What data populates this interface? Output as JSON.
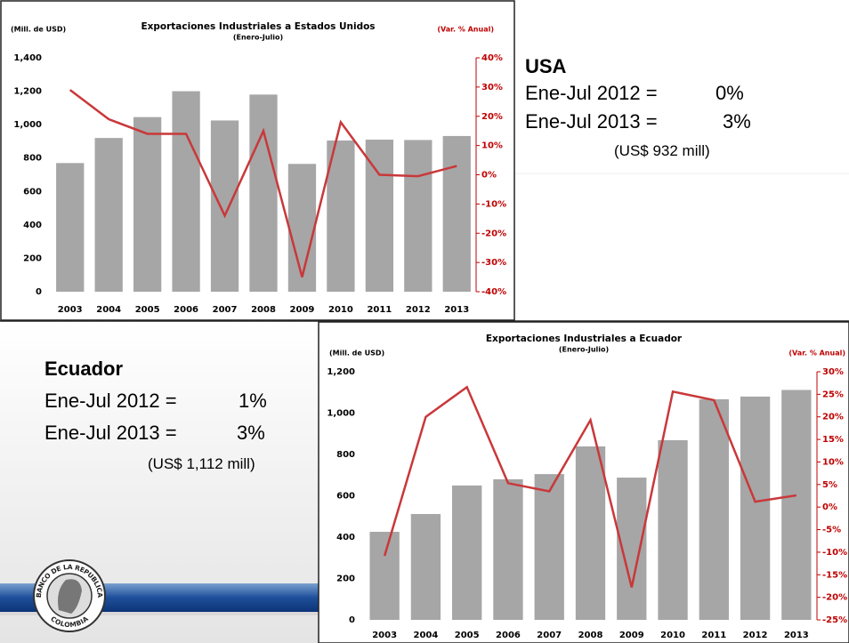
{
  "chart_data": [
    {
      "type": "bar",
      "title": "Exportaciones Industriales a Estados Unidos",
      "subtitle": "(Enero-Julio)",
      "y_label": "(Mill. de USD)",
      "y2_label": "(Var. % Anual)",
      "categories": [
        "2003",
        "2004",
        "2005",
        "2006",
        "2007",
        "2008",
        "2009",
        "2010",
        "2011",
        "2012",
        "2013"
      ],
      "series": [
        {
          "type": "bar",
          "color": "#a6a6a6",
          "values": [
            770,
            920,
            1045,
            1200,
            1025,
            1180,
            765,
            905,
            910,
            908,
            932
          ]
        },
        {
          "type": "line",
          "axis": "y2",
          "color": "#c9383a",
          "values": [
            29,
            19,
            14,
            14,
            -14,
            15,
            -35,
            18,
            0,
            -0.5,
            3
          ]
        }
      ],
      "ylim": [
        0,
        1400
      ],
      "yticks": [
        0,
        200,
        400,
        600,
        800,
        {
          "value": 1000,
          "label": "1,000"
        },
        {
          "value": 1200,
          "label": "1,200"
        },
        {
          "value": 1400,
          "label": "1,400"
        }
      ],
      "y2lim": [
        -40,
        40
      ],
      "y2ticks": [
        {
          "value": -40,
          "label": "-40%"
        },
        {
          "value": -30,
          "label": "-30%"
        },
        {
          "value": -20,
          "label": "-20%"
        },
        {
          "value": -10,
          "label": "-10%"
        },
        {
          "value": 0,
          "label": "0%"
        },
        {
          "value": 10,
          "label": "10%"
        },
        {
          "value": 20,
          "label": "20%"
        },
        {
          "value": 30,
          "label": "30%"
        },
        {
          "value": 40,
          "label": "40%"
        }
      ]
    },
    {
      "type": "bar",
      "title": "Exportaciones Industriales a Ecuador",
      "subtitle": "(Enero-Julio)",
      "y_label": "(Mill. de USD)",
      "y2_label": "(Var. % Anual)",
      "categories": [
        "2003",
        "2004",
        "2005",
        "2006",
        "2007",
        "2008",
        "2009",
        "2010",
        "2011",
        "2012",
        "2013"
      ],
      "series": [
        {
          "type": "bar",
          "color": "#a6a6a6",
          "values": [
            426,
            512,
            650,
            680,
            705,
            839,
            688,
            869,
            1067,
            1080,
            1112
          ]
        },
        {
          "type": "line",
          "axis": "y2",
          "color": "#c9383a",
          "values": [
            -10.8,
            20,
            26.6,
            5.3,
            3.5,
            19.3,
            -17.8,
            25.6,
            23.7,
            1.2,
            2.6
          ]
        }
      ],
      "ylim": [
        0,
        1200
      ],
      "yticks": [
        0,
        200,
        400,
        600,
        800,
        {
          "value": 1000,
          "label": "1,000"
        },
        {
          "value": 1200,
          "label": "1,200"
        }
      ],
      "y2lim": [
        -25,
        30
      ],
      "y2ticks": [
        {
          "value": -25,
          "label": "-25%"
        },
        {
          "value": -20,
          "label": "-20%"
        },
        {
          "value": -15,
          "label": "-15%"
        },
        {
          "value": -10,
          "label": "-10%"
        },
        {
          "value": -5,
          "label": "-5%"
        },
        {
          "value": 0,
          "label": "0%"
        },
        {
          "value": 5,
          "label": "5%"
        },
        {
          "value": 10,
          "label": "10%"
        },
        {
          "value": 15,
          "label": "15%"
        },
        {
          "value": 20,
          "label": "20%"
        },
        {
          "value": 25,
          "label": "25%"
        },
        {
          "value": 30,
          "label": "30%"
        }
      ]
    }
  ],
  "text_boxes": [
    {
      "heading": "USA",
      "lines": [
        {
          "label": "Ene-Jul 2012 =",
          "value": "0%"
        },
        {
          "label": "Ene-Jul 2013 =",
          "value": "3%"
        }
      ],
      "note": "(US$ 932 mill)"
    },
    {
      "heading": "Ecuador",
      "lines": [
        {
          "label": "Ene-Jul 2012 =",
          "value": "1%"
        },
        {
          "label": "Ene-Jul 2013 =",
          "value": "3%"
        }
      ],
      "note": "(US$ 1,112 mill)"
    }
  ],
  "logo": {
    "top": "BANCO DE LA REPUBLICA",
    "bottom": "COLOMBIA"
  }
}
